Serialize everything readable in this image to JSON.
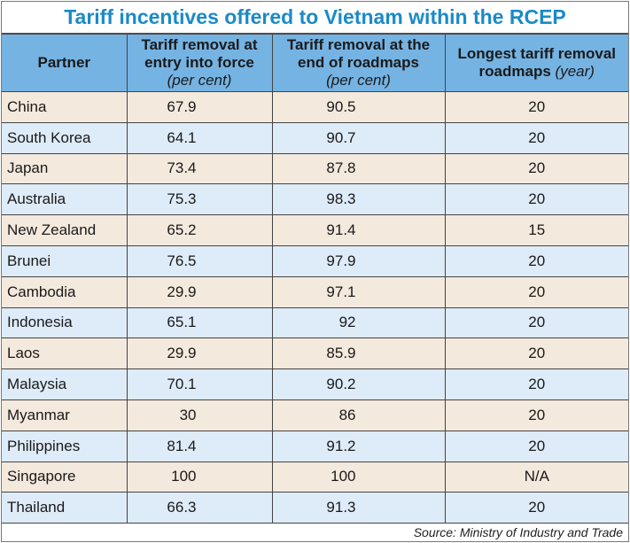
{
  "chart_data": {
    "type": "table",
    "title": "Tariff incentives offered to Vietnam within the RCEP",
    "columns": [
      {
        "label": "Partner",
        "unit": ""
      },
      {
        "label": "Tariff removal at entry into force",
        "unit": "(per cent)"
      },
      {
        "label": "Tariff removal at the end of roadmaps",
        "unit": "(per cent)"
      },
      {
        "label": "Longest tariff removal roadmaps",
        "unit": "(year)"
      }
    ],
    "rows": [
      [
        "China",
        "67.9",
        "90.5",
        "20"
      ],
      [
        "South Korea",
        "64.1",
        "90.7",
        "20"
      ],
      [
        "Japan",
        "73.4",
        "87.8",
        "20"
      ],
      [
        "Australia",
        "75.3",
        "98.3",
        "20"
      ],
      [
        "New Zealand",
        "65.2",
        "91.4",
        "15"
      ],
      [
        "Brunei",
        "76.5",
        "97.9",
        "20"
      ],
      [
        "Cambodia",
        "29.9",
        "97.1",
        "20"
      ],
      [
        "Indonesia",
        "65.1",
        "92",
        "20"
      ],
      [
        "Laos",
        "29.9",
        "85.9",
        "20"
      ],
      [
        "Malaysia",
        "70.1",
        "90.2",
        "20"
      ],
      [
        "Myanmar",
        "30",
        "86",
        "20"
      ],
      [
        "Philippines",
        "81.4",
        "91.2",
        "20"
      ],
      [
        "Singapore",
        "100",
        "100",
        "N/A"
      ],
      [
        "Thailand",
        "66.3",
        "91.3",
        "20"
      ]
    ],
    "source": "Source: Ministry of Industry and Trade",
    "colors": {
      "title": "#1a8ac8",
      "header": "#75b3e3",
      "row_odd": "#f4e9dd",
      "row_even": "#deebf8"
    }
  }
}
